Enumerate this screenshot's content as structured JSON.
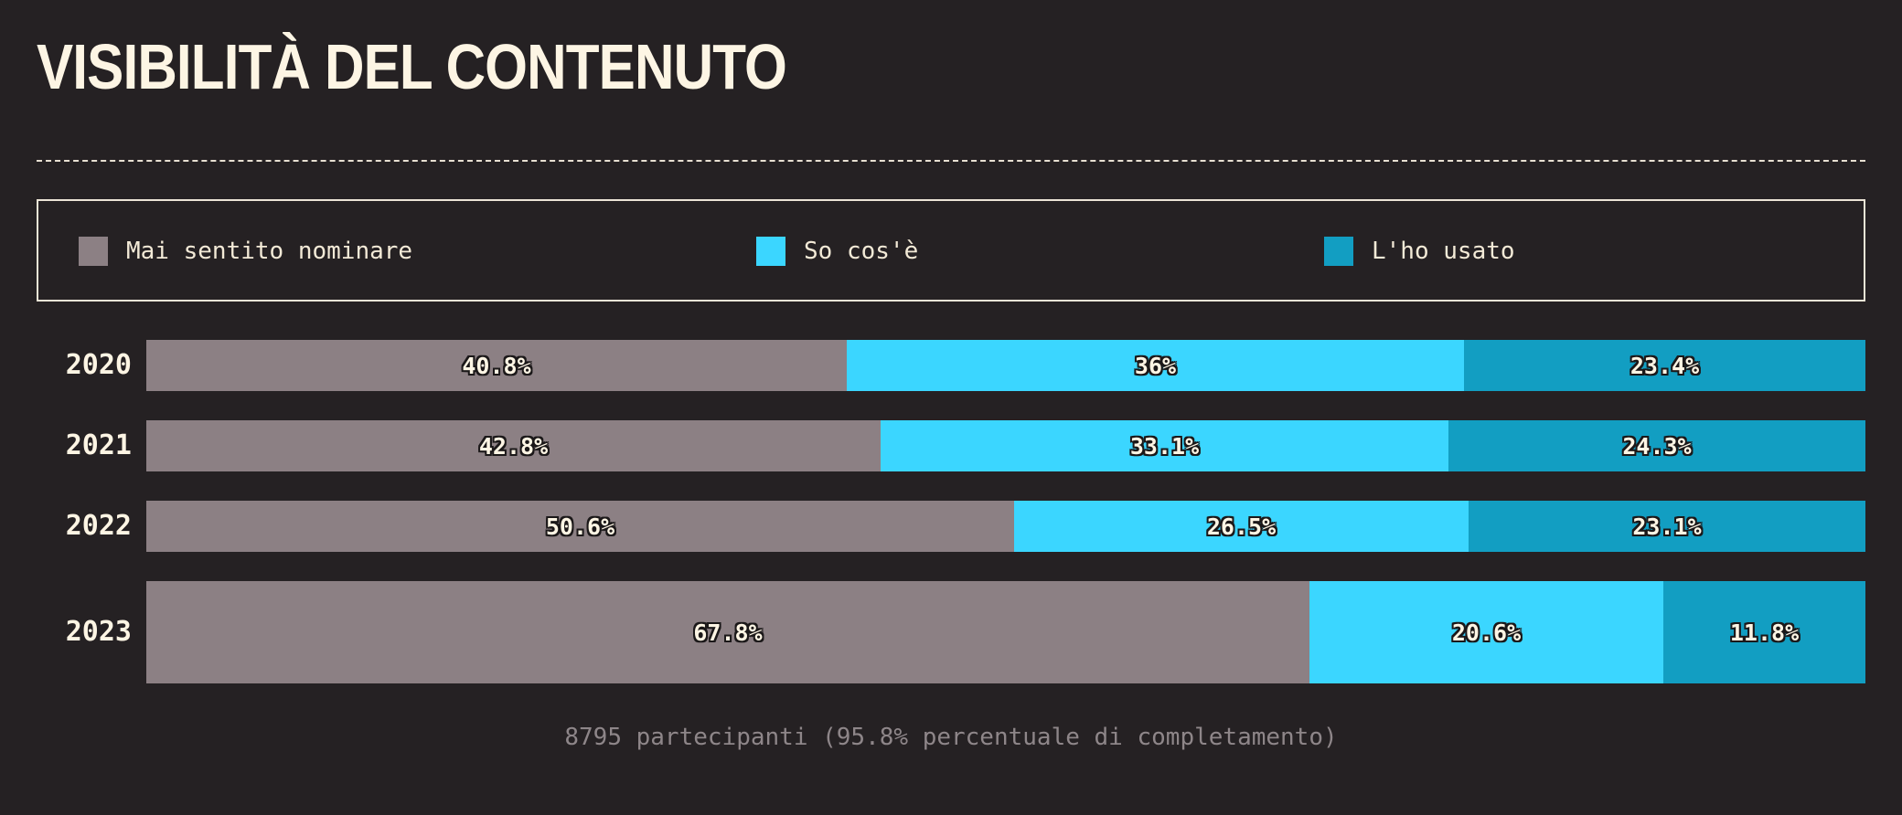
{
  "title": "VISIBILITÀ DEL CONTENUTO",
  "legend": [
    {
      "label": "Mai sentito nominare",
      "color": "#8c8084"
    },
    {
      "label": "So cos'è",
      "color": "#3bd6ff"
    },
    {
      "label": "L'ho usato",
      "color": "#129ec2"
    }
  ],
  "footer": "8795 partecipanti (95.8% percentuale di completamento)",
  "chart_data": {
    "type": "bar",
    "orientation": "horizontal",
    "stacked": true,
    "normalized": true,
    "title": "VISIBILITÀ DEL CONTENUTO",
    "categories": [
      "2020",
      "2021",
      "2022",
      "2023"
    ],
    "series": [
      {
        "name": "Mai sentito nominare",
        "color": "#8c8084",
        "values": [
          40.8,
          42.8,
          50.6,
          67.8
        ],
        "labels": [
          "40.8%",
          "42.8%",
          "50.6%",
          "67.8%"
        ]
      },
      {
        "name": "So cos'è",
        "color": "#3bd6ff",
        "values": [
          36,
          33.1,
          26.5,
          20.6
        ],
        "labels": [
          "36%",
          "33.1%",
          "26.5%",
          "20.6%"
        ]
      },
      {
        "name": "L'ho usato",
        "color": "#129ec2",
        "values": [
          23.4,
          24.3,
          23.1,
          11.8
        ],
        "labels": [
          "23.4%",
          "24.3%",
          "23.1%",
          "11.8%"
        ]
      }
    ],
    "unit": "%",
    "legend_position": "top",
    "grid": false
  }
}
